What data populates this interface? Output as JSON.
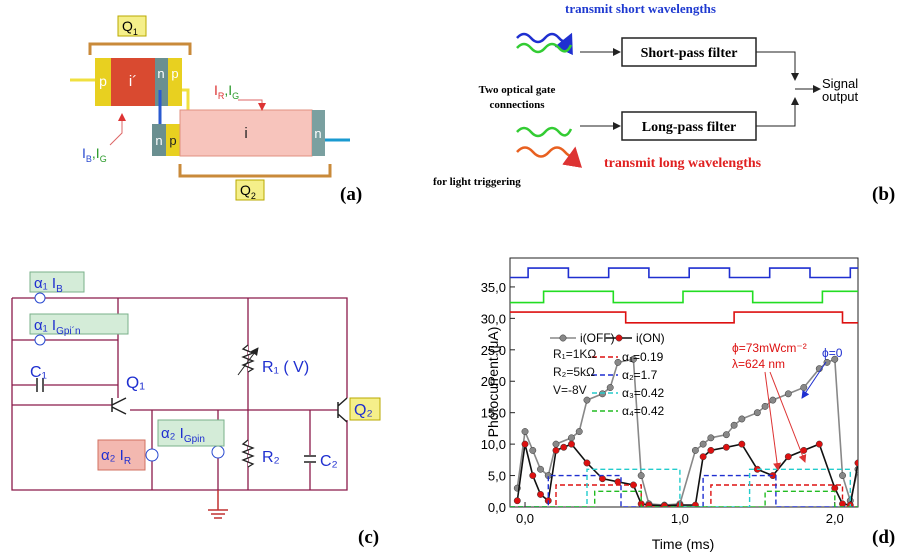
{
  "panel_a": {
    "q1": [
      "Q",
      "1"
    ],
    "q2": [
      "Q",
      "2"
    ],
    "top_layers": [
      "p",
      "i´",
      "n",
      "p"
    ],
    "bottom_layers": [
      "n",
      "p",
      "i",
      "n"
    ],
    "ir_ig": [
      "I",
      "R",
      ",I",
      "G"
    ],
    "ib_ig": [
      "I",
      "B",
      ",I",
      "G"
    ],
    "label": "(a)"
  },
  "panel_b": {
    "top_note": "transmit short wavelengths",
    "short_filter": "Short-pass filter",
    "long_filter": "Long-pass filter",
    "gate_note": [
      "Two optical gate",
      "connections"
    ],
    "bottom_note": "transmit long wavelengths",
    "trigger_note": "for light triggering",
    "output": [
      "Signal",
      "output"
    ],
    "label": "(b)"
  },
  "panel_c": {
    "alpha1_ib": [
      "α₁ I",
      "B"
    ],
    "alpha1_igpin": [
      "α₁ I",
      "Gpi´n"
    ],
    "c1": "C₁",
    "q1": "Q₁",
    "r1": "R₁ ( V)",
    "q2": "Q₂",
    "alpha2_ir": [
      "α₂ I",
      "R"
    ],
    "alpha2_igpin": [
      "α₂ I",
      "Gpin"
    ],
    "r2": "R₂",
    "c2": "C₂",
    "label": "(c)"
  },
  "chart_data": {
    "type": "line",
    "panel_label": "(d)",
    "xlabel": "Time (ms)",
    "ylabel": "Photocurrent (μA)",
    "xlim": [
      -0.097,
      2.15
    ],
    "ylim": [
      0,
      39.6
    ],
    "xticks": [
      {
        "value": 0,
        "label": "0,0"
      },
      {
        "value": 1,
        "label": "1,0"
      },
      {
        "value": 2,
        "label": "2,0"
      }
    ],
    "yticks": [
      {
        "value": 0,
        "label": "0,0"
      },
      {
        "value": 5,
        "label": "5,0"
      },
      {
        "value": 10,
        "label": "10,0"
      },
      {
        "value": 15,
        "label": "15,0"
      },
      {
        "value": 20,
        "label": "20,0"
      },
      {
        "value": 25,
        "label": "25,0"
      },
      {
        "value": 30,
        "label": "30,0"
      },
      {
        "value": 35,
        "label": "35,0"
      }
    ],
    "series": [
      {
        "color": "#1f2fd0",
        "x": [
          -0.097,
          0.02,
          0.02,
          0.28,
          0.28,
          0.54,
          0.54,
          0.8,
          0.8,
          1.06,
          1.06,
          1.32,
          1.32,
          1.58,
          1.58,
          1.84,
          1.84,
          2.1,
          2.1,
          2.15
        ],
        "values": [
          36.5,
          36.5,
          38,
          38,
          36.5,
          36.5,
          38,
          38,
          36.5,
          36.5,
          38,
          38,
          36.5,
          36.5,
          38,
          38,
          36.5,
          36.5,
          38,
          38
        ]
      },
      {
        "color": "#22dd22",
        "x": [
          -0.097,
          0.12,
          0.12,
          0.57,
          0.57,
          1.02,
          1.02,
          1.47,
          1.47,
          1.92,
          1.92,
          2.15
        ],
        "values": [
          32.5,
          32.5,
          34.3,
          34.3,
          32.5,
          32.5,
          34.3,
          34.3,
          32.5,
          32.5,
          34.3,
          34.3
        ]
      },
      {
        "color": "#dd1111",
        "x": [
          -0.097,
          0.65,
          0.65,
          1.35,
          1.35,
          2.05,
          2.05,
          2.15
        ],
        "values": [
          31,
          31,
          29.3,
          29.3,
          31,
          31,
          29.3,
          29.3
        ]
      },
      {
        "name": "i(OFF)",
        "color": "#888888",
        "marker": true,
        "x": [
          -0.05,
          0,
          0.05,
          0.1,
          0.15,
          0.2,
          0.3,
          0.35,
          0.4,
          0.5,
          0.55,
          0.6,
          0.7,
          0.75,
          0.8,
          0.9,
          1.0,
          1.1,
          1.15,
          1.2,
          1.3,
          1.35,
          1.4,
          1.5,
          1.55,
          1.6,
          1.7,
          1.8,
          1.9,
          1.95,
          2.0,
          2.05,
          2.1,
          2.15
        ],
        "values": [
          3,
          12,
          9,
          6,
          5,
          10,
          11,
          12,
          17,
          18,
          19,
          23,
          23.5,
          5,
          0.5,
          0.3,
          0.5,
          9,
          10,
          11,
          11.5,
          13,
          14,
          15,
          16,
          17,
          18,
          19,
          22,
          23,
          23.5,
          5,
          1,
          6
        ]
      },
      {
        "name": "i(ON)",
        "color": "#111111",
        "marker_color": "#dd1111",
        "marker": true,
        "x": [
          -0.05,
          0,
          0.05,
          0.1,
          0.15,
          0.2,
          0.25,
          0.3,
          0.4,
          0.5,
          0.6,
          0.7,
          0.75,
          0.8,
          0.9,
          1.0,
          1.1,
          1.15,
          1.2,
          1.3,
          1.4,
          1.5,
          1.6,
          1.7,
          1.8,
          1.9,
          2.0,
          2.05,
          2.1,
          2.15
        ],
        "values": [
          1,
          10,
          5,
          2,
          1,
          9,
          9.5,
          10,
          7,
          4.5,
          4,
          3.5,
          0.5,
          0.3,
          0.2,
          0.3,
          0.3,
          8,
          9,
          9.5,
          10,
          6,
          5,
          8,
          9,
          10,
          3,
          0.5,
          0.3,
          7
        ]
      },
      {
        "name": "α₁=0.19",
        "color": "#dd1111",
        "dashed": true,
        "x": [
          -0.097,
          0.2,
          0.2,
          0.75,
          0.75,
          1.2,
          1.2,
          2.05,
          2.05,
          2.15
        ],
        "values": [
          0,
          0,
          3.5,
          3.5,
          0,
          0,
          3.5,
          3.5,
          0,
          0
        ]
      },
      {
        "name": "α₂=1.7",
        "color": "#1f2fd0",
        "dashed": true,
        "x": [
          -0.097,
          0.15,
          0.15,
          0.62,
          0.62,
          1.15,
          1.15,
          1.62,
          1.62,
          2.15
        ],
        "values": [
          0,
          0,
          5,
          5,
          0,
          0,
          5,
          5,
          0,
          0
        ]
      },
      {
        "name": "α₃=0.42",
        "color": "#22cccc",
        "dashed": true,
        "x": [
          -0.097,
          0.4,
          0.4,
          1.0,
          1.0,
          1.45,
          1.45,
          2.1,
          2.1,
          2.15
        ],
        "values": [
          0,
          0,
          6,
          6,
          0,
          0,
          6,
          6,
          0,
          0
        ]
      },
      {
        "name": "α₄=0.42",
        "color": "#22bb22",
        "dashed": true,
        "x": [
          -0.097,
          0.45,
          0.45,
          0.75,
          0.75,
          1.55,
          1.55,
          2.0,
          2.0,
          2.15
        ],
        "values": [
          0,
          0,
          2.5,
          2.5,
          0,
          0,
          2.5,
          2.5,
          0,
          0
        ]
      }
    ],
    "annotations": [
      {
        "text": "R₁=1KΩ",
        "color": "#111111"
      },
      {
        "text": "R₂=5kΩ",
        "color": "#111111"
      },
      {
        "text": "V=-8V",
        "color": "#111111"
      },
      {
        "text": "ϕ=73mWcm⁻²",
        "color": "#dd1111"
      },
      {
        "text": "λ=624 nm",
        "color": "#dd1111"
      },
      {
        "text": "ϕ=0",
        "color": "#1f2fd0"
      }
    ]
  }
}
